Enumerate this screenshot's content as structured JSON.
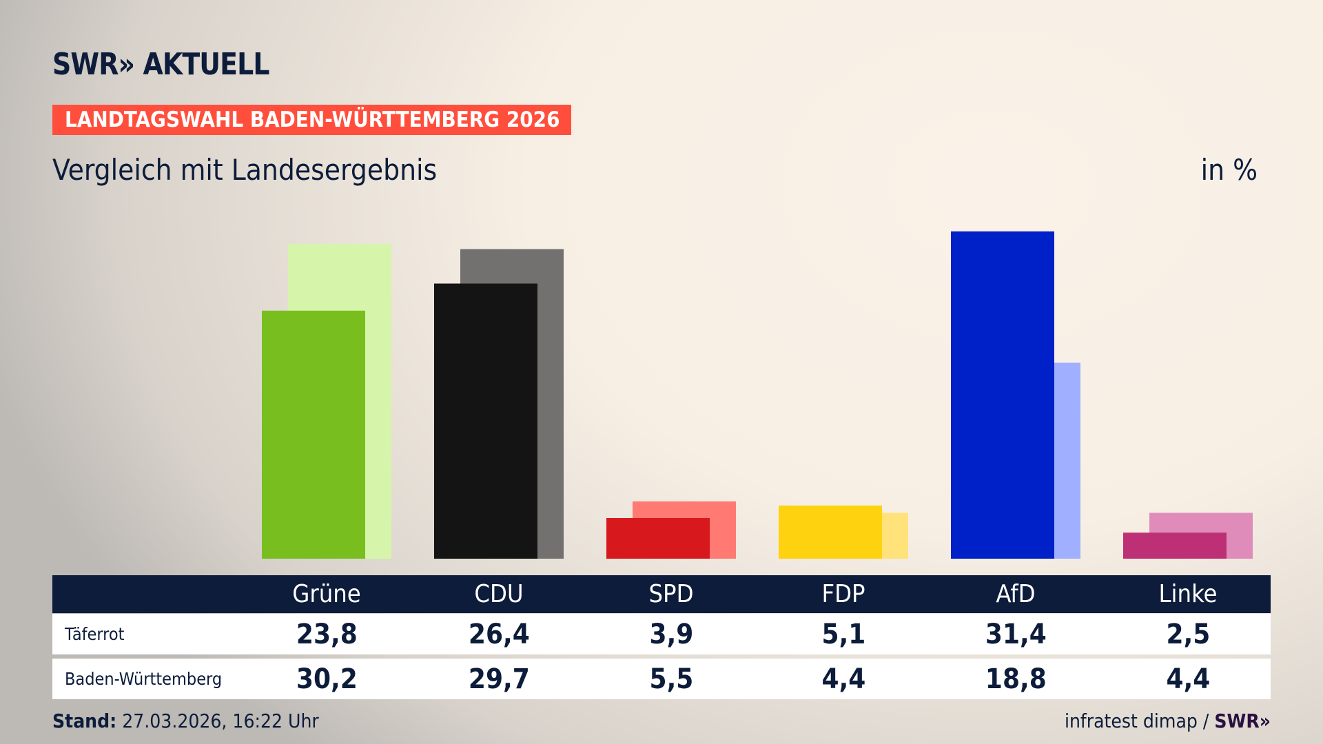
{
  "header": {
    "logo": "SWR» AKTUELL",
    "banner": "LANDTAGSWAHL BADEN-WÜRTTEMBERG 2026",
    "subtitle": "Vergleich mit Landesergebnis",
    "unit": "in %"
  },
  "chart_data": {
    "type": "bar",
    "categories": [
      "Grüne",
      "CDU",
      "SPD",
      "FDP",
      "AfD",
      "Linke"
    ],
    "series": [
      {
        "name": "Täferrot",
        "values": [
          23.8,
          26.4,
          3.9,
          5.1,
          31.4,
          2.5
        ],
        "colors": [
          "#78be1e",
          "#141414",
          "#d7191e",
          "#ffd20f",
          "#0020c8",
          "#be3075"
        ]
      },
      {
        "name": "Baden-Württemberg",
        "values": [
          30.2,
          29.7,
          5.5,
          4.4,
          18.8,
          4.4
        ],
        "colors": [
          "#d7f5aa",
          "#737170",
          "#ff7a73",
          "#ffe37a",
          "#a0afff",
          "#e08cbb"
        ]
      }
    ],
    "value_labels": [
      [
        "23,8",
        "26,4",
        "3,9",
        "5,1",
        "31,4",
        "2,5"
      ],
      [
        "30,2",
        "29,7",
        "5,5",
        "4,4",
        "18,8",
        "4,4"
      ]
    ],
    "ylim": [
      0,
      32
    ],
    "grid": false
  },
  "colors": {
    "banner": "#ff4f3c",
    "navy": "#0c1c3a"
  },
  "footer": {
    "stand_label": "Stand:",
    "stand_value": "27.03.2026, 16:22 Uhr",
    "source": "infratest dimap /",
    "source_logo": "SWR»"
  }
}
